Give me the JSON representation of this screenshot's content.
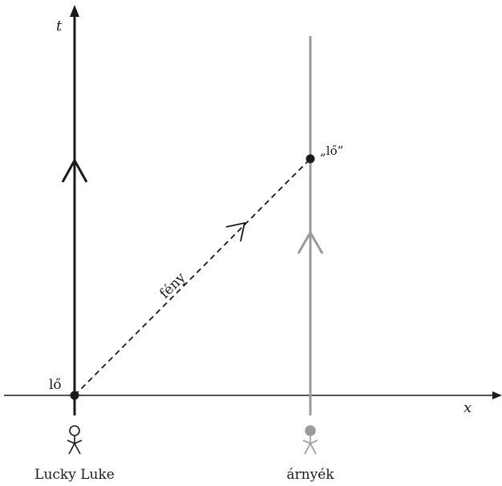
{
  "axes": {
    "x_label": "x",
    "t_label": "t"
  },
  "labels": {
    "event_fire": "lő",
    "event_shadow_fire": "„lő”",
    "light": "fény",
    "lucky_luke": "Lucky Luke",
    "shadow": "árnyék"
  },
  "colors": {
    "axis": "#1a1a1a",
    "lucky_worldline": "#1a1a1a",
    "shadow_worldline": "#9a9a9a",
    "light_ray": "#1a1a1a",
    "event_dot": "#1a1a1a"
  },
  "icons": {
    "lucky_figure": "stick-figure-outline-icon",
    "shadow_figure": "stick-figure-filled-icon"
  }
}
